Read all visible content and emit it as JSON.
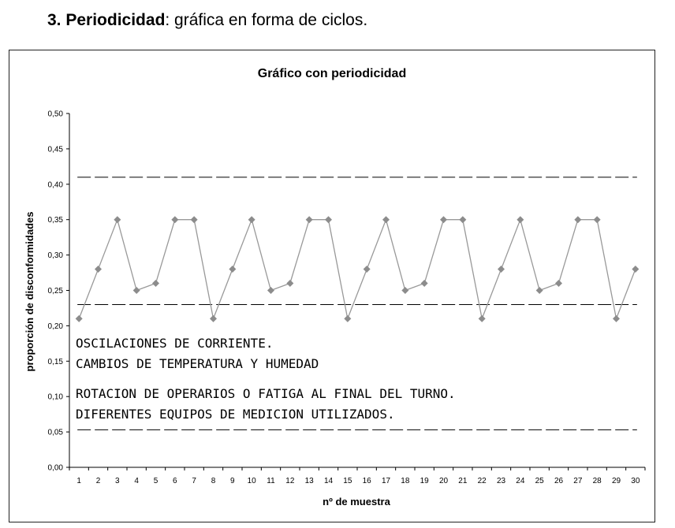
{
  "heading": {
    "number": "3.",
    "bold": "Periodicidad",
    "rest": ": gráfica en forma de ciclos."
  },
  "chart_data": {
    "type": "line",
    "title": "Gráfico con periodicidad",
    "xlabel": "nº de muestra",
    "ylabel": "proporción de disconformidades",
    "x": [
      1,
      2,
      3,
      4,
      5,
      6,
      7,
      8,
      9,
      10,
      11,
      12,
      13,
      14,
      15,
      16,
      17,
      18,
      19,
      20,
      21,
      22,
      23,
      24,
      25,
      26,
      27,
      28,
      29,
      30
    ],
    "series": [
      {
        "values": [
          0.21,
          0.28,
          0.35,
          0.25,
          0.26,
          0.35,
          0.35,
          0.21,
          0.28,
          0.35,
          0.25,
          0.26,
          0.35,
          0.35,
          0.21,
          0.28,
          0.35,
          0.25,
          0.26,
          0.35,
          0.35,
          0.21,
          0.28,
          0.35,
          0.25,
          0.26,
          0.35,
          0.35,
          0.21,
          0.28
        ]
      }
    ],
    "reference_lines": [
      0.41,
      0.23,
      0.053
    ],
    "ylim": [
      0,
      0.5
    ],
    "yticks": [
      "0,00",
      "0,05",
      "0,10",
      "0,15",
      "0,20",
      "0,25",
      "0,30",
      "0,35",
      "0,40",
      "0,45",
      "0,50"
    ],
    "xticks": [
      "1",
      "2",
      "3",
      "4",
      "5",
      "6",
      "7",
      "8",
      "9",
      "10",
      "11",
      "12",
      "13",
      "14",
      "15",
      "16",
      "17",
      "18",
      "19",
      "20",
      "21",
      "22",
      "23",
      "24",
      "25",
      "26",
      "27",
      "28",
      "29",
      "30"
    ],
    "grid": false,
    "colors": {
      "series": "#999999",
      "marker": "#8c8c8c",
      "reference": "#000000"
    },
    "annotations": [
      "OSCILACIONES DE CORRIENTE.",
      "CAMBIOS DE TEMPERATURA Y HUMEDAD",
      "ROTACION DE OPERARIOS O FATIGA AL FINAL DEL TURNO.",
      "DIFERENTES EQUIPOS DE MEDICION UTILIZADOS."
    ]
  }
}
